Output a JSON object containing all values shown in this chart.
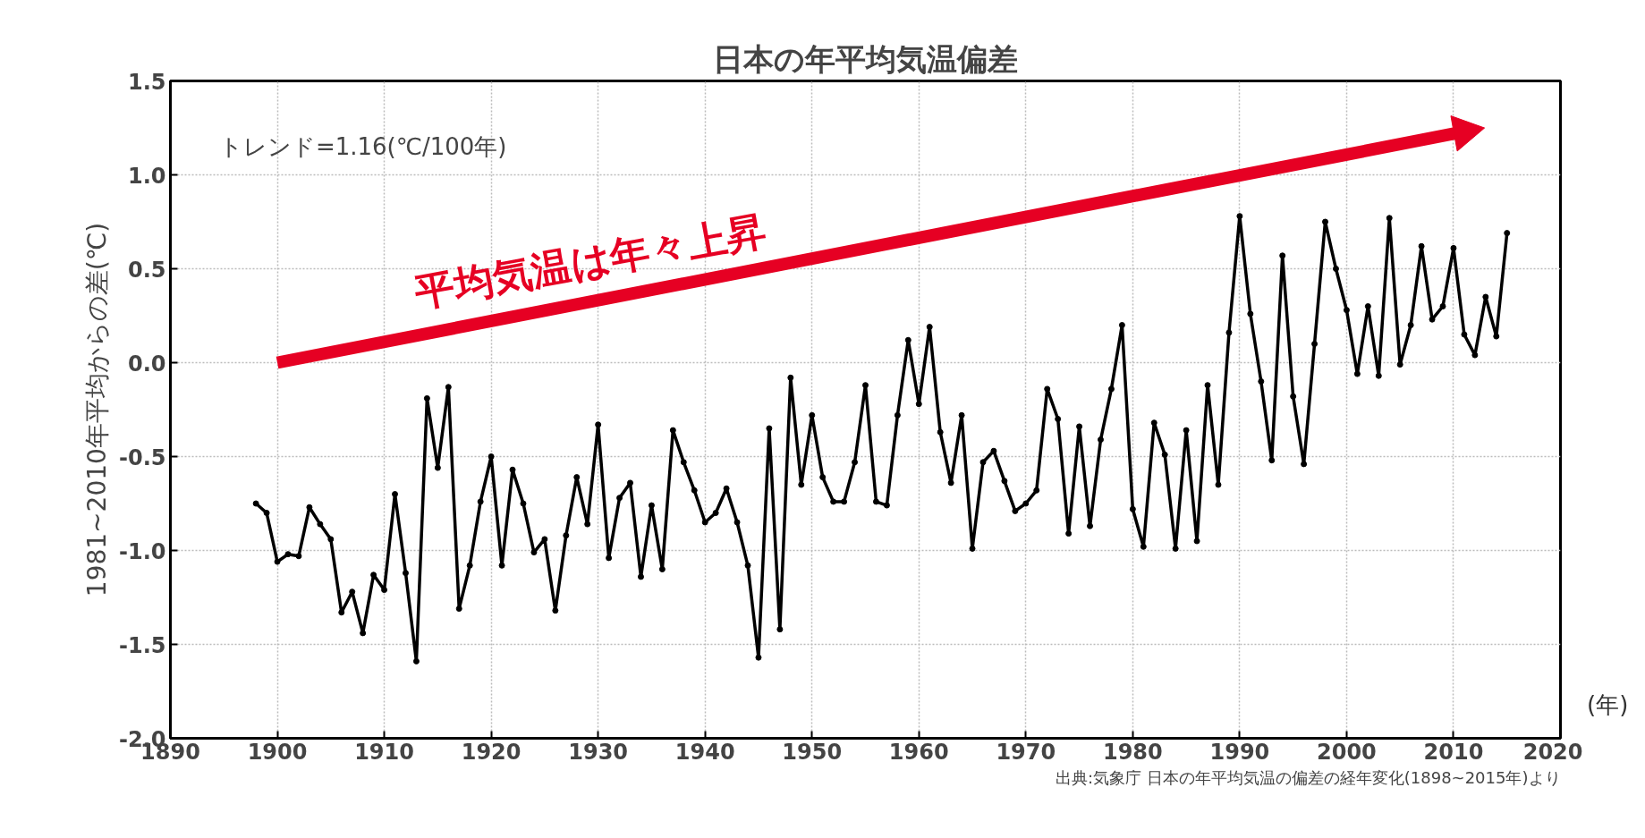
{
  "chart_data": {
    "type": "line",
    "title": "日本の年平均気温偏差",
    "ylabel": "1981~2010年平均からの差(℃)",
    "xlabel": "(年)",
    "x": [
      1898,
      1899,
      1900,
      1901,
      1902,
      1903,
      1904,
      1905,
      1906,
      1907,
      1908,
      1909,
      1910,
      1911,
      1912,
      1913,
      1914,
      1915,
      1916,
      1917,
      1918,
      1919,
      1920,
      1921,
      1922,
      1923,
      1924,
      1925,
      1926,
      1927,
      1928,
      1929,
      1930,
      1931,
      1932,
      1933,
      1934,
      1935,
      1936,
      1937,
      1938,
      1939,
      1940,
      1941,
      1942,
      1943,
      1944,
      1945,
      1946,
      1947,
      1948,
      1949,
      1950,
      1951,
      1952,
      1953,
      1954,
      1955,
      1956,
      1957,
      1958,
      1959,
      1960,
      1961,
      1962,
      1963,
      1964,
      1965,
      1966,
      1967,
      1968,
      1969,
      1970,
      1971,
      1972,
      1973,
      1974,
      1975,
      1976,
      1977,
      1978,
      1979,
      1980,
      1981,
      1982,
      1983,
      1984,
      1985,
      1986,
      1987,
      1988,
      1989,
      1990,
      1991,
      1992,
      1993,
      1994,
      1995,
      1996,
      1997,
      1998,
      1999,
      2000,
      2001,
      2002,
      2003,
      2004,
      2005,
      2006,
      2007,
      2008,
      2009,
      2010,
      2011,
      2012,
      2013,
      2014,
      2015
    ],
    "series": [
      {
        "color": "#000000",
        "marker": "circle",
        "values": [
          -0.75,
          -0.8,
          -1.06,
          -1.02,
          -1.03,
          -0.77,
          -0.86,
          -0.94,
          -1.33,
          -1.22,
          -1.44,
          -1.13,
          -1.21,
          -0.7,
          -1.12,
          -1.59,
          -0.19,
          -0.56,
          -0.13,
          -1.31,
          -1.08,
          -0.74,
          -0.5,
          -1.08,
          -0.57,
          -0.75,
          -1.01,
          -0.94,
          -1.32,
          -0.92,
          -0.61,
          -0.86,
          -0.33,
          -1.04,
          -0.72,
          -0.64,
          -1.14,
          -0.76,
          -1.1,
          -0.36,
          -0.53,
          -0.68,
          -0.85,
          -0.8,
          -0.67,
          -0.85,
          -1.08,
          -1.57,
          -0.35,
          -1.42,
          -0.08,
          -0.65,
          -0.28,
          -0.61,
          -0.74,
          -0.74,
          -0.53,
          -0.12,
          -0.74,
          -0.76,
          -0.28,
          0.12,
          -0.22,
          0.19,
          -0.37,
          -0.64,
          -0.28,
          -0.99,
          -0.53,
          -0.47,
          -0.63,
          -0.79,
          -0.75,
          -0.68,
          -0.14,
          -0.3,
          -0.91,
          -0.34,
          -0.87,
          -0.41,
          -0.14,
          0.2,
          -0.78,
          -0.98,
          -0.32,
          -0.49,
          -0.99,
          -0.36,
          -0.95,
          -0.12,
          -0.65,
          0.16,
          0.78,
          0.26,
          -0.1,
          -0.52,
          0.57,
          -0.18,
          -0.54,
          0.1,
          0.75,
          0.5,
          0.28,
          -0.06,
          0.3,
          -0.07,
          0.77,
          -0.01,
          0.2,
          0.62,
          0.23,
          0.3,
          0.61,
          0.15,
          0.04,
          0.35,
          0.14,
          0.69
        ]
      },
      {
        "color": "#e60023",
        "marker": "triangle",
        "x": [
          1900,
          2011
        ],
        "values": [
          0.0,
          1.23
        ]
      }
    ],
    "xlim": [
      1890,
      2020
    ],
    "xticks": [
      1890,
      1900,
      1910,
      1920,
      1930,
      1940,
      1950,
      1960,
      1970,
      1980,
      1990,
      2000,
      2010,
      2020
    ],
    "ylim": [
      -2.0,
      1.5
    ],
    "yticks": [
      {
        "value": -2.0,
        "label": "-2.0"
      },
      {
        "value": -1.5,
        "label": "-1.5"
      },
      {
        "value": -1.0,
        "label": "-1.0"
      },
      {
        "value": -0.5,
        "label": "-0.5"
      },
      {
        "value": 0.0,
        "label": "0.0"
      },
      {
        "value": 0.5,
        "label": "0.5"
      },
      {
        "value": 1.0,
        "label": "1.0"
      },
      {
        "value": 1.5,
        "label": "1.5"
      }
    ],
    "grid": true,
    "line_style": "solid",
    "annotations": [
      "トレンド=1.16(℃/100年)",
      "平均気温は年々上昇",
      "出典:気象庁 日本の年平均気温の偏差の経年変化(1898~2015年)より"
    ]
  }
}
